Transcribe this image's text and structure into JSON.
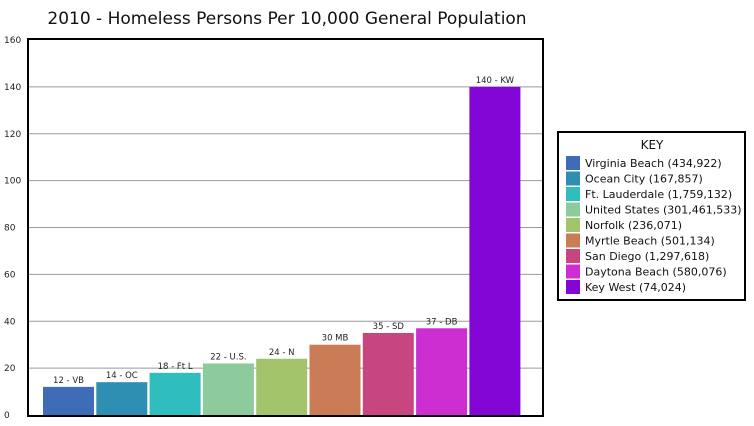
{
  "chart_data": {
    "type": "bar",
    "title": "2010 - Homeless Persons Per 10,000 General Population",
    "xlabel": "",
    "ylabel": "",
    "ylim": [
      0,
      160
    ],
    "yticks": [
      0,
      20,
      40,
      60,
      80,
      100,
      120,
      140,
      160
    ],
    "grid": true,
    "legend_position": "right",
    "legend_title": "KEY",
    "categories": [
      "Virginia Beach (434,922)",
      "Ocean City (167,857)",
      "Ft. Lauderdale (1,759,132)",
      "United States (301,461,533)",
      "Norfolk (236,071)",
      "Myrtle Beach (501,134)",
      "San Diego (1,297,618)",
      "Daytona Beach (580,076)",
      "Key West (74,024)"
    ],
    "values": [
      12,
      14,
      18,
      22,
      24,
      30,
      35,
      37,
      140
    ],
    "data_labels": [
      "12 - VB",
      "14 - OC",
      "18 - Ft L",
      "22 - U.S.",
      "24 - N",
      "30  MB",
      "35 - SD",
      "37 - DB",
      "140 - KW"
    ],
    "colors": [
      "#3f6cb6",
      "#2e8fb3",
      "#2fbdbd",
      "#8dca9c",
      "#a3c46a",
      "#c97c55",
      "#c8467f",
      "#cc2ed1",
      "#8406d6"
    ]
  }
}
